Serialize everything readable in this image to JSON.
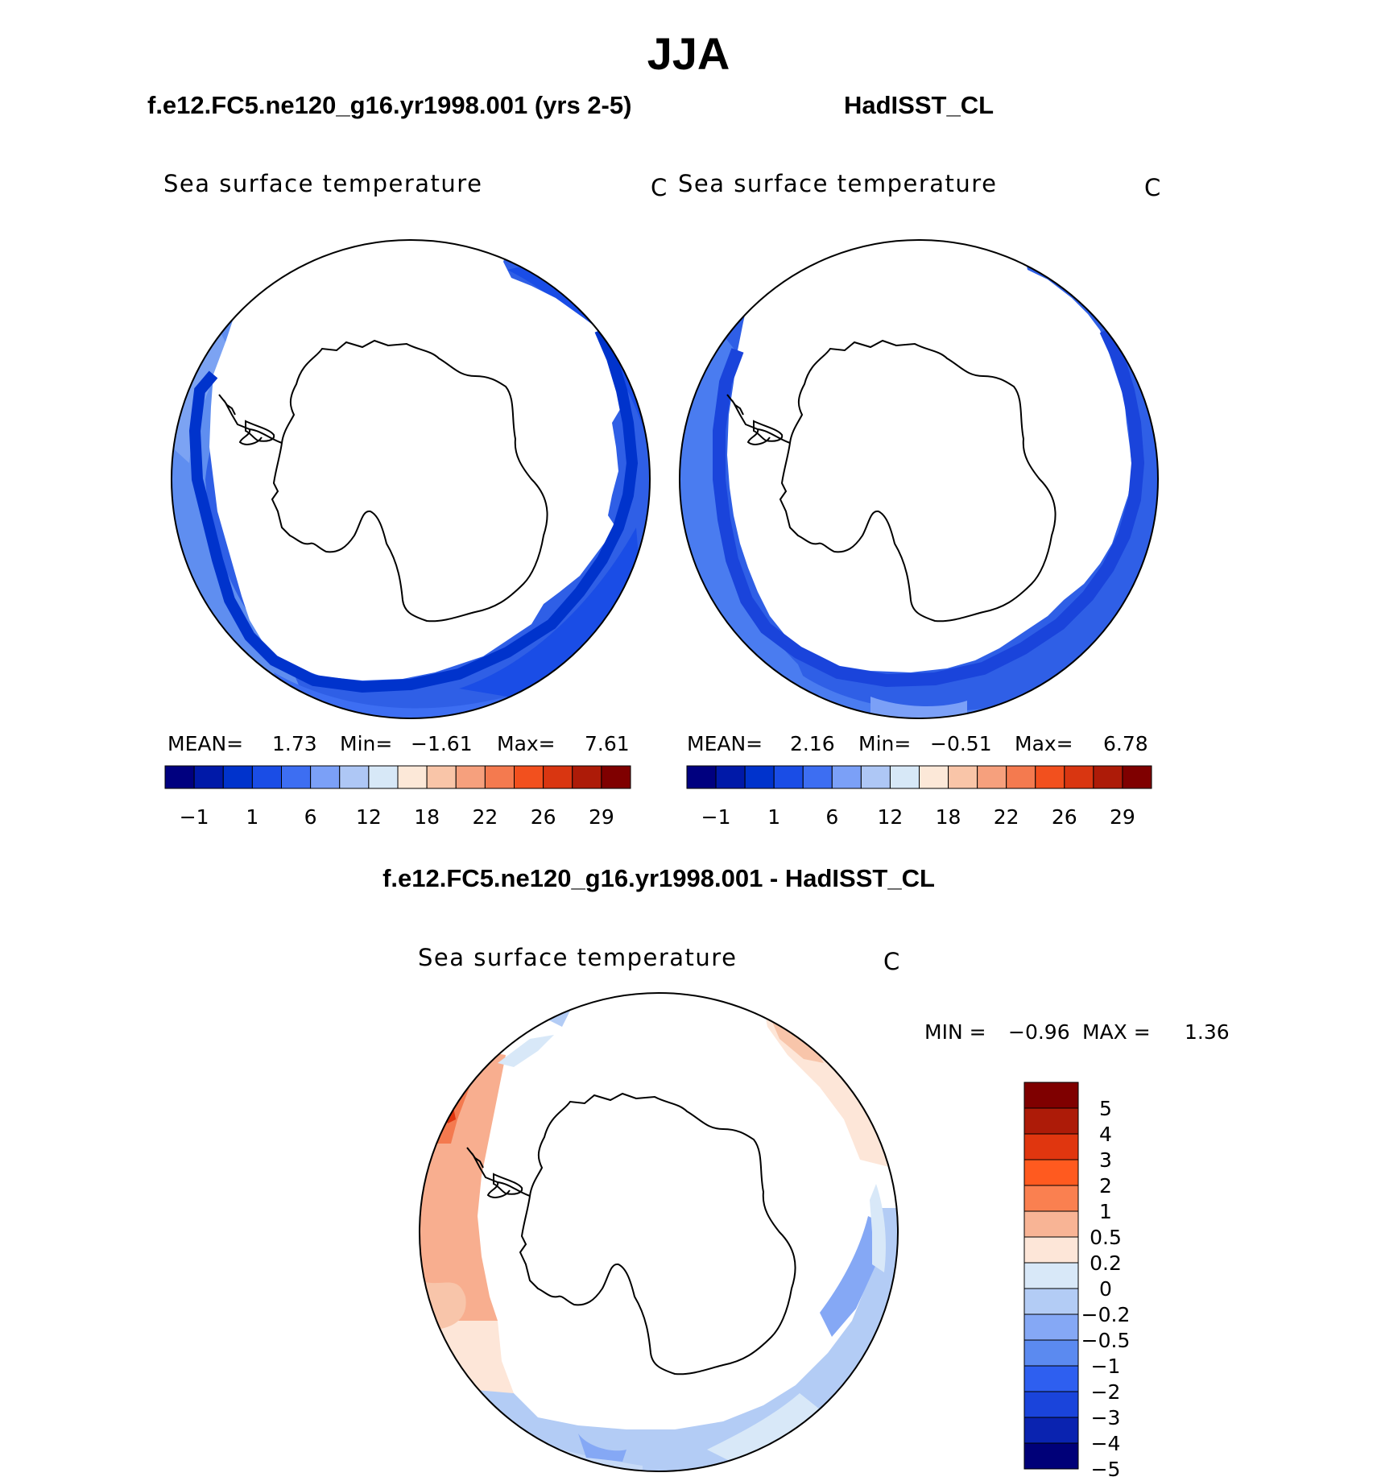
{
  "figure": {
    "season_title": "JJA",
    "colors": {
      "land_fill": "#ffffff",
      "coastline": "#000000",
      "frame": "#000000"
    }
  },
  "panels": {
    "model": {
      "case_title": "f.e12.FC5.ne120_g16.yr1998.001 (yrs 2-5)",
      "variable_label": "Sea surface temperature",
      "units": "C",
      "stats": {
        "mean_label": "MEAN=",
        "mean_value": "1.73",
        "min_label": "Min=",
        "min_value": "−1.61",
        "max_label": "Max=",
        "max_value": "7.61"
      },
      "colorbar": {
        "colors": [
          "#00007f",
          "#0019a8",
          "#0033cc",
          "#1a4de6",
          "#3d6ef2",
          "#7ba0f7",
          "#aec7f5",
          "#d7e8f7",
          "#fce8d8",
          "#f9c5a8",
          "#f6a07d",
          "#f47a4f",
          "#f2501e",
          "#d93611",
          "#ad1b08",
          "#7f0000"
        ],
        "tick_labels": [
          "−1",
          "1",
          "6",
          "12",
          "18",
          "22",
          "26",
          "29"
        ]
      }
    },
    "obs": {
      "case_title": "HadISST_CL",
      "variable_label": "Sea surface temperature",
      "units": "C",
      "stats": {
        "mean_label": "MEAN=",
        "mean_value": "2.16",
        "min_label": "Min=",
        "min_value": "−0.51",
        "max_label": "Max=",
        "max_value": "6.78"
      },
      "colorbar": {
        "colors": [
          "#00007f",
          "#0019a8",
          "#0033cc",
          "#1a4de6",
          "#3d6ef2",
          "#7ba0f7",
          "#aec7f5",
          "#d7e8f7",
          "#fce8d8",
          "#f9c5a8",
          "#f6a07d",
          "#f47a4f",
          "#f2501e",
          "#d93611",
          "#ad1b08",
          "#7f0000"
        ],
        "tick_labels": [
          "−1",
          "1",
          "6",
          "12",
          "18",
          "22",
          "26",
          "29"
        ]
      }
    },
    "diff": {
      "case_title": "f.e12.FC5.ne120_g16.yr1998.001 - HadISST_CL",
      "variable_label": "Sea surface temperature",
      "units": "C",
      "stats": {
        "min_label": "MIN =",
        "min_value": "−0.96",
        "max_label": "MAX =",
        "max_value": "1.36"
      },
      "colorbar": {
        "colors": [
          "#7f0000",
          "#ad1b08",
          "#e0360f",
          "#ff5a1f",
          "#fa8050",
          "#f8b495",
          "#fde6d8",
          "#d8e8f8",
          "#b3ccf5",
          "#85a8f5",
          "#5b8af0",
          "#2e5ff0",
          "#1a44db",
          "#0a23b0",
          "#000078"
        ],
        "tick_labels": [
          "5",
          "4",
          "3",
          "2",
          "1",
          "0.5",
          "0.2",
          "0",
          "−0.2",
          "−0.5",
          "−1",
          "−2",
          "−3",
          "−4",
          "−5"
        ]
      }
    }
  }
}
